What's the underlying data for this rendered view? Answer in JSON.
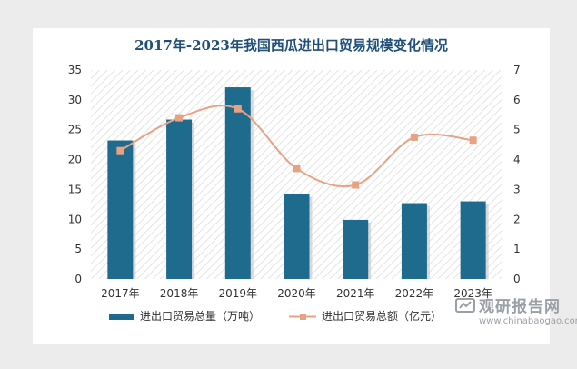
{
  "chart_data": {
    "type": "bar",
    "title": "2017年-2023年我国西瓜进出口贸易规模变化情况",
    "categories": [
      "2017年",
      "2018年",
      "2019年",
      "2020年",
      "2021年",
      "2022年",
      "2023年"
    ],
    "series": [
      {
        "name": "进出口贸易总量（万吨）",
        "type": "bar",
        "axis": "left",
        "values": [
          23.2,
          26.7,
          32.1,
          14.2,
          9.9,
          12.7,
          13.0
        ]
      },
      {
        "name": "进出口贸易总额（亿元）",
        "type": "line",
        "axis": "right",
        "values": [
          4.3,
          5.4,
          5.7,
          3.7,
          3.15,
          4.75,
          4.65
        ]
      }
    ],
    "ylim": [
      0,
      35
    ],
    "y_ticks": [
      "0",
      "5",
      "10",
      "15",
      "20",
      "25",
      "30",
      "35"
    ],
    "y2lim": [
      0,
      7
    ],
    "y2_ticks": [
      "0",
      "1",
      "2",
      "3",
      "4",
      "5",
      "6",
      "7"
    ],
    "grid": false,
    "legend_position": "bottom"
  },
  "colors": {
    "bar": "#1f6b8e",
    "line": "#e8a283",
    "title": "#1f4e79"
  },
  "watermark": {
    "brand": "观研报告网",
    "url": "www.chinabaogao.com"
  }
}
